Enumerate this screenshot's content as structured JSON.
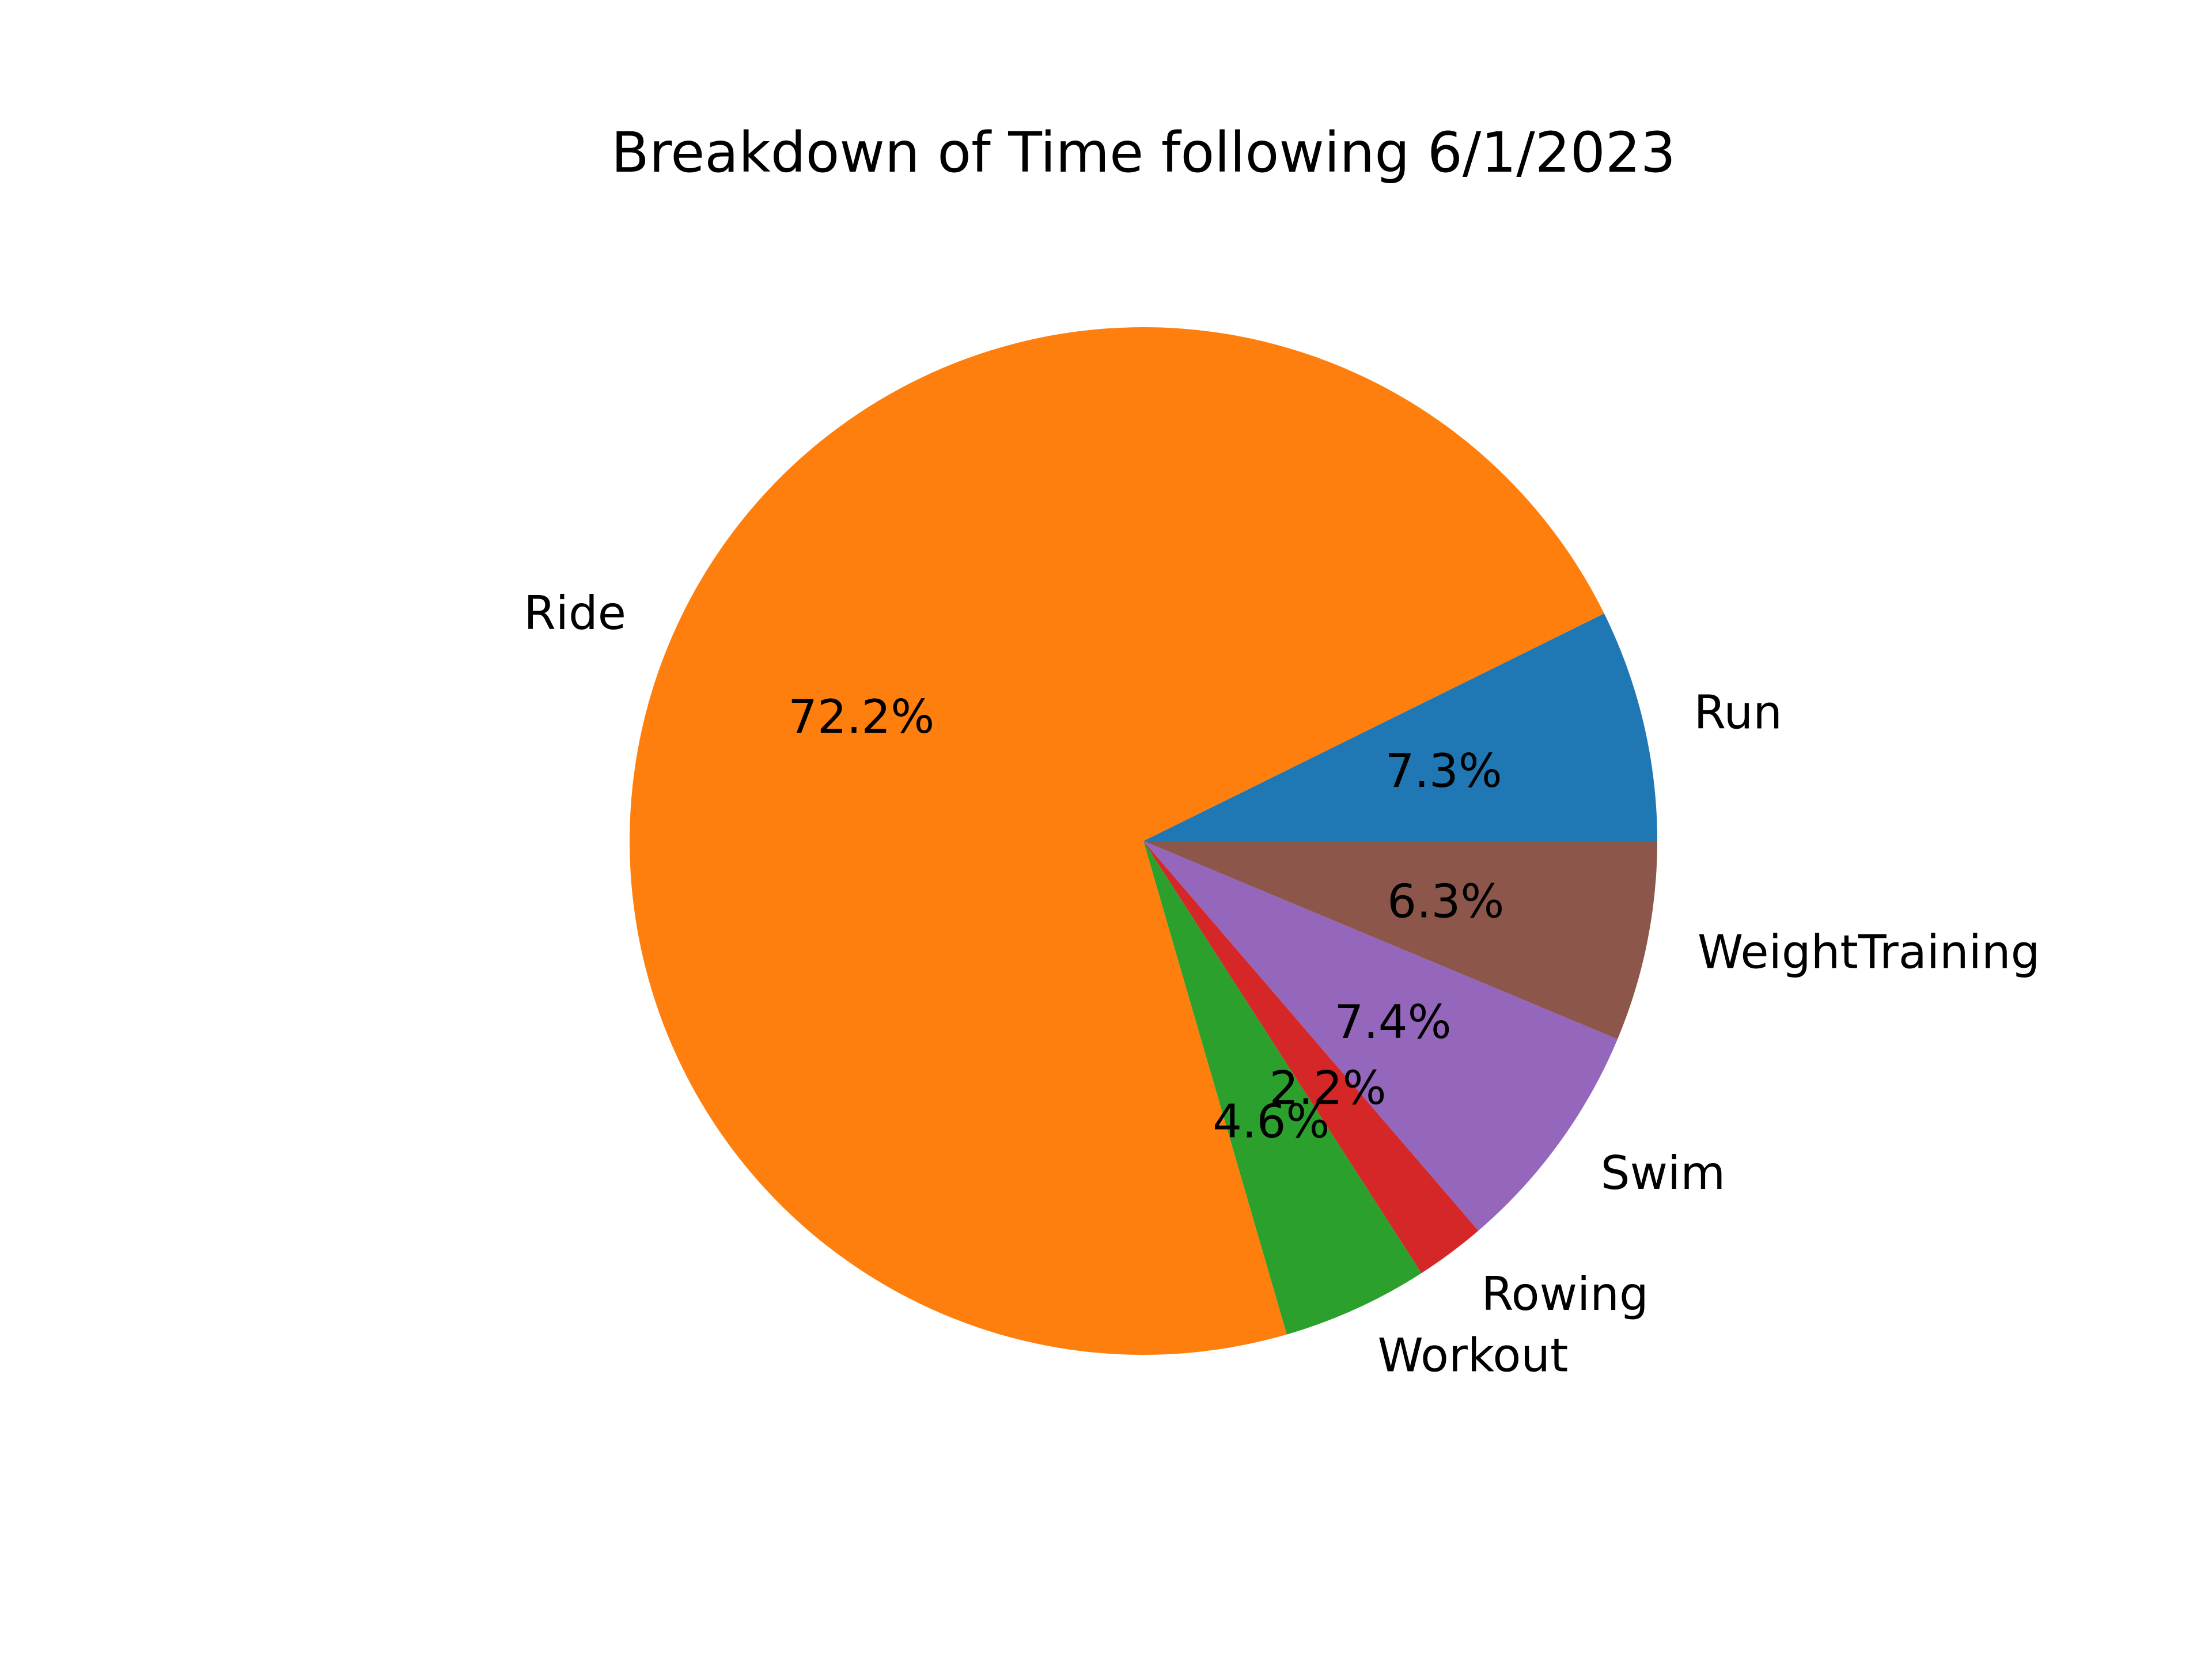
{
  "chart_data": {
    "type": "pie",
    "title": "Breakdown of Time following 6/1/2023",
    "slices": [
      {
        "label": "Run",
        "value": 7.3,
        "pct_text": "7.3%",
        "color": "#1f77b4"
      },
      {
        "label": "Ride",
        "value": 72.2,
        "pct_text": "72.2%",
        "color": "#ff7f0e"
      },
      {
        "label": "Workout",
        "value": 4.6,
        "pct_text": "4.6%",
        "color": "#2ca02c"
      },
      {
        "label": "Rowing",
        "value": 2.2,
        "pct_text": "2.2%",
        "color": "#d62728"
      },
      {
        "label": "Swim",
        "value": 7.4,
        "pct_text": "7.4%",
        "color": "#9467bd"
      },
      {
        "label": "WeightTraining",
        "value": 6.3,
        "pct_text": "6.3%",
        "color": "#8c564b"
      }
    ],
    "start_angle": "0 degrees (3 o'clock), counterclockwise",
    "legend": "none"
  }
}
